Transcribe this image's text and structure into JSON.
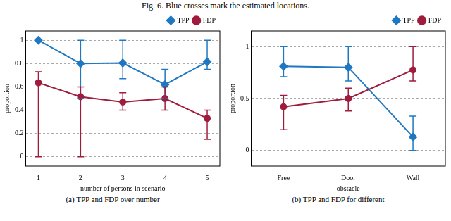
{
  "figure_caption": "Fig. 6. Blue crosses mark the estimated locations.",
  "chart_data": [
    {
      "type": "line",
      "caption": "(a) TPP and FDP over number",
      "x_label": "number of persons in scenario",
      "y_label": "proportion",
      "x": [
        1,
        2,
        3,
        4,
        5
      ],
      "xlim": [
        0.7,
        5.3
      ],
      "xticks": [
        1,
        2,
        3,
        4,
        5
      ],
      "ylim": [
        -0.08,
        1.08
      ],
      "yticks": [
        0,
        0.2,
        0.4,
        0.6,
        0.8,
        1
      ],
      "grid": true,
      "legend": "top right",
      "series": [
        {
          "name": "TPP",
          "color": "#1f78c1",
          "marker": "diamond",
          "values": [
            1,
            0.8,
            0.805,
            0.62,
            0.815
          ],
          "lower": [
            1,
            0.5,
            0.67,
            0.5,
            0.75
          ],
          "upper": [
            1,
            1,
            1,
            0.75,
            1
          ]
        },
        {
          "name": "FDP",
          "color": "#a01c3c",
          "marker": "circle",
          "values": [
            0.635,
            0.515,
            0.47,
            0.5,
            0.33
          ],
          "lower": [
            0,
            0,
            0.4,
            0.4,
            0.15
          ],
          "upper": [
            0.73,
            0.6,
            0.55,
            0.6,
            0.4
          ]
        }
      ]
    },
    {
      "type": "line",
      "caption": "(b) TPP and FDP for different",
      "x_label": "obstacle",
      "y_label": "proportion",
      "categories": [
        "Free",
        "Door",
        "Wall"
      ],
      "ylim": [
        -0.15,
        1.15
      ],
      "yticks": [
        0,
        0.5,
        1
      ],
      "grid": true,
      "legend": "top right",
      "series": [
        {
          "name": "TPP",
          "color": "#1f78c1",
          "marker": "diamond",
          "values": [
            0.81,
            0.8,
            0.13
          ],
          "lower": [
            0.71,
            0.67,
            0
          ],
          "upper": [
            1,
            1,
            0.33
          ]
        },
        {
          "name": "FDP",
          "color": "#a01c3c",
          "marker": "circle",
          "values": [
            0.42,
            0.5,
            0.775
          ],
          "lower": [
            0.2,
            0.38,
            0.67
          ],
          "upper": [
            0.53,
            0.6,
            1
          ]
        }
      ]
    }
  ]
}
